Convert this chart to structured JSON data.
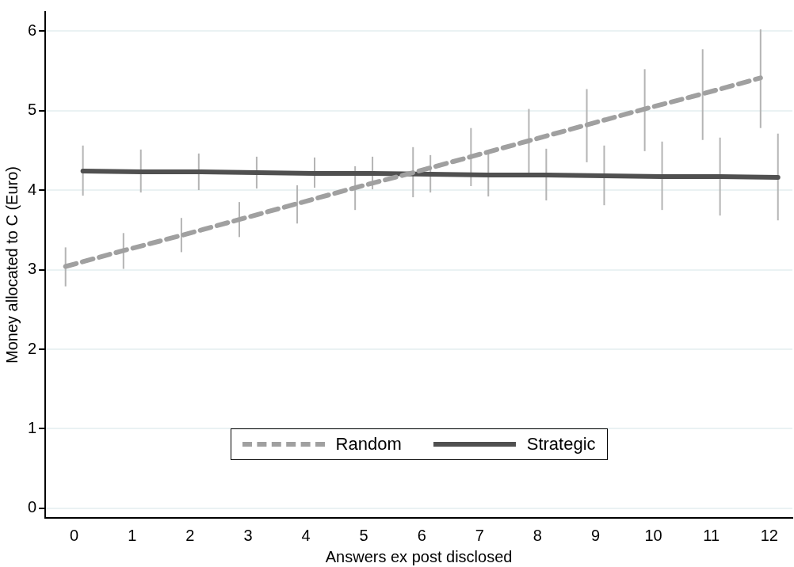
{
  "chart_data": {
    "type": "line",
    "xlabel": "Answers ex post disclosed",
    "ylabel": "Money allocated to C (Euro)",
    "xlim": [
      -0.5,
      12.4
    ],
    "xticks": [
      0,
      1,
      2,
      3,
      4,
      5,
      6,
      7,
      8,
      9,
      10,
      11,
      12
    ],
    "ylim": [
      -0.12,
      6.24
    ],
    "yticks": [
      0,
      1,
      2,
      3,
      4,
      5,
      6
    ],
    "grid": "y",
    "legend": "bottom",
    "marker": "none",
    "series": [
      {
        "name": "Random",
        "color": "#a0a0a0",
        "line_style": "dashed",
        "x": [
          -0.15,
          0.85,
          1.85,
          2.85,
          3.85,
          4.85,
          5.85,
          6.85,
          7.85,
          8.85,
          9.85,
          10.85,
          11.85
        ],
        "values": [
          3.04,
          3.24,
          3.43,
          3.63,
          3.83,
          4.03,
          4.22,
          4.42,
          4.62,
          4.82,
          5.02,
          5.21,
          5.41
        ],
        "errors": [
          [
            2.79,
            3.28
          ],
          [
            3.01,
            3.46
          ],
          [
            3.22,
            3.65
          ],
          [
            3.41,
            3.85
          ],
          [
            3.58,
            4.06
          ],
          [
            3.75,
            4.3
          ],
          [
            3.91,
            4.54
          ],
          [
            4.05,
            4.78
          ],
          [
            4.22,
            5.02
          ],
          [
            4.35,
            5.27
          ],
          [
            4.49,
            5.52
          ],
          [
            4.63,
            5.77
          ],
          [
            4.78,
            6.02
          ]
        ]
      },
      {
        "name": "Strategic",
        "color": "#505050",
        "line_style": "solid",
        "x": [
          0.15,
          1.15,
          2.15,
          3.15,
          4.15,
          5.15,
          6.15,
          7.15,
          8.15,
          9.15,
          10.15,
          11.15,
          12.15
        ],
        "values": [
          4.24,
          4.23,
          4.23,
          4.22,
          4.21,
          4.21,
          4.2,
          4.19,
          4.19,
          4.18,
          4.17,
          4.17,
          4.16
        ],
        "errors": [
          [
            3.93,
            4.56
          ],
          [
            3.97,
            4.51
          ],
          [
            4.0,
            4.46
          ],
          [
            4.02,
            4.42
          ],
          [
            4.03,
            4.41
          ],
          [
            4.01,
            4.42
          ],
          [
            3.97,
            4.44
          ],
          [
            3.92,
            4.46
          ],
          [
            3.87,
            4.52
          ],
          [
            3.81,
            4.56
          ],
          [
            3.75,
            4.61
          ],
          [
            3.68,
            4.66
          ],
          [
            3.62,
            4.71
          ]
        ]
      }
    ]
  }
}
